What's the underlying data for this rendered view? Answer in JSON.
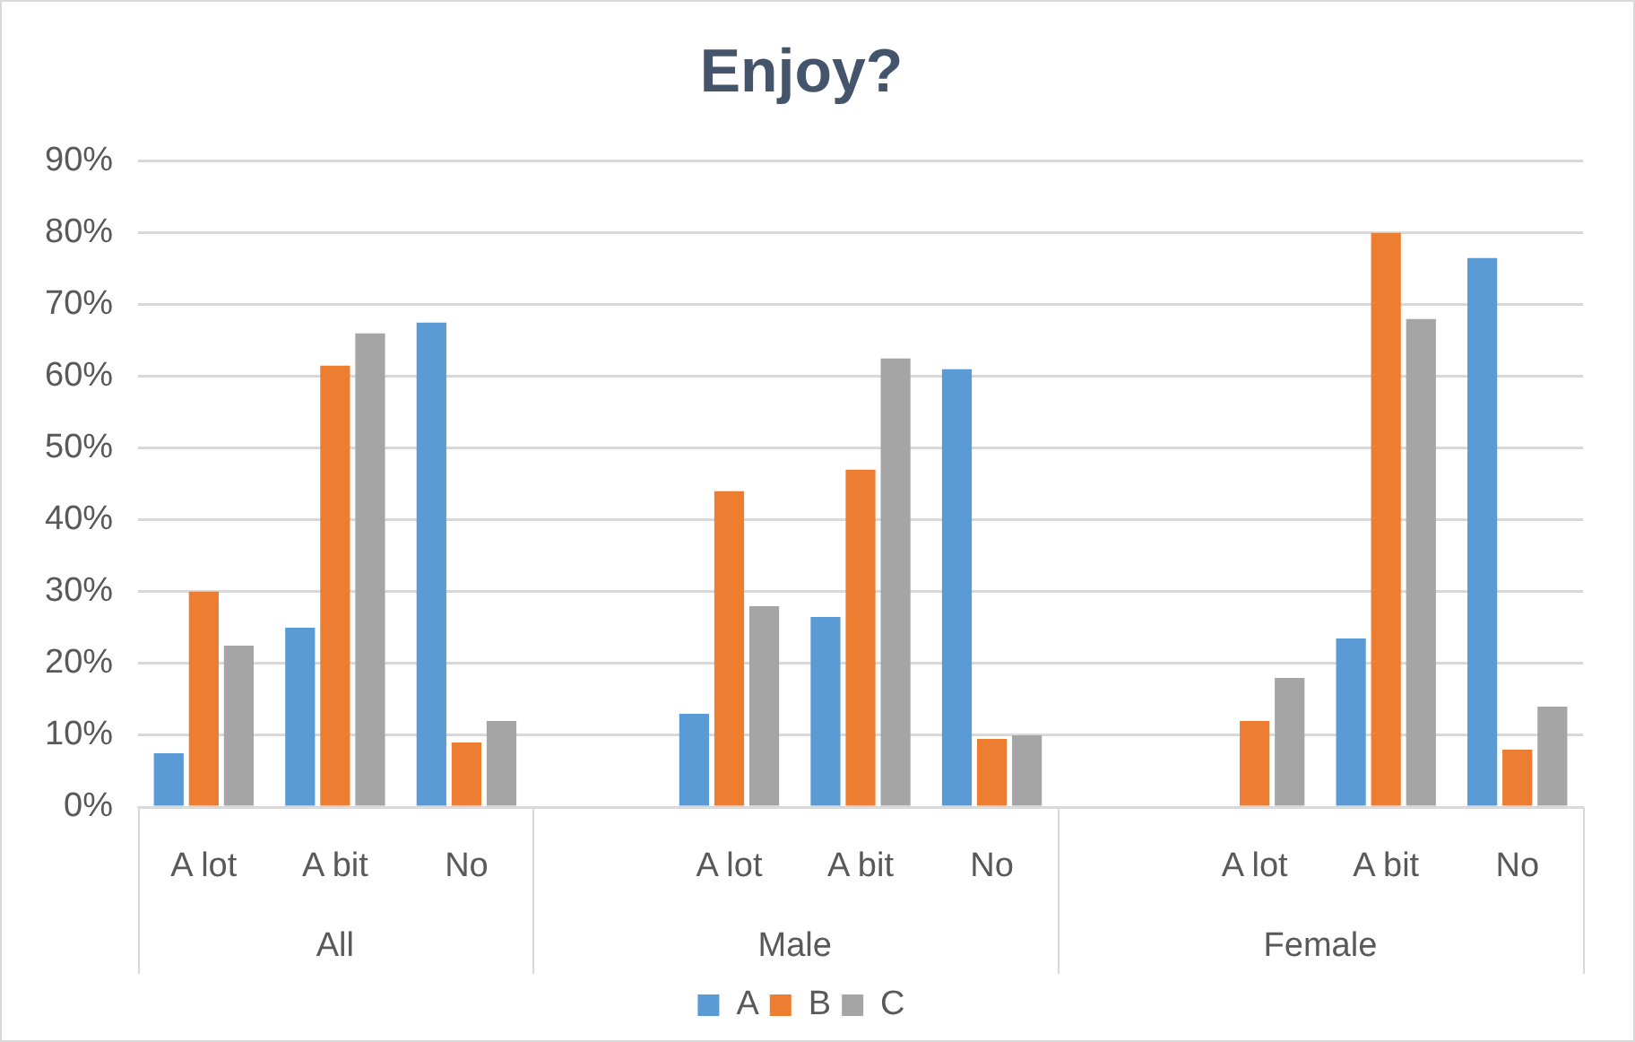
{
  "chart_data": {
    "type": "bar",
    "title": "Enjoy?",
    "categories": [
      "A lot",
      "A bit",
      "No",
      null,
      "A lot",
      "A bit",
      "No",
      null,
      "A lot",
      "A bit",
      "No"
    ],
    "series": [
      {
        "name": "A",
        "color": "#5b9bd5",
        "values": [
          7.5,
          25,
          67.5,
          null,
          13,
          26.5,
          61,
          null,
          0,
          23.5,
          76.5
        ]
      },
      {
        "name": "B",
        "color": "#ed7d31",
        "values": [
          30,
          61.5,
          9,
          null,
          44,
          47,
          9.5,
          null,
          12,
          80,
          8
        ]
      },
      {
        "name": "C",
        "color": "#a5a5a5",
        "values": [
          22.5,
          66,
          12,
          null,
          28,
          62.5,
          10,
          null,
          18,
          68,
          14
        ]
      }
    ],
    "ylim": [
      0,
      90
    ],
    "yticks": [
      {
        "value": 0,
        "label": "0%"
      },
      {
        "value": 10,
        "label": "10%"
      },
      {
        "value": 20,
        "label": "20%"
      },
      {
        "value": 30,
        "label": "30%"
      },
      {
        "value": 40,
        "label": "40%"
      },
      {
        "value": 50,
        "label": "50%"
      },
      {
        "value": 60,
        "label": "60%"
      },
      {
        "value": 70,
        "label": "70%"
      },
      {
        "value": 80,
        "label": "80%"
      },
      {
        "value": 90,
        "label": "90%"
      }
    ],
    "annotations": [
      "All",
      "Male",
      "Female"
    ],
    "grid": "y",
    "legend": "bottom"
  }
}
